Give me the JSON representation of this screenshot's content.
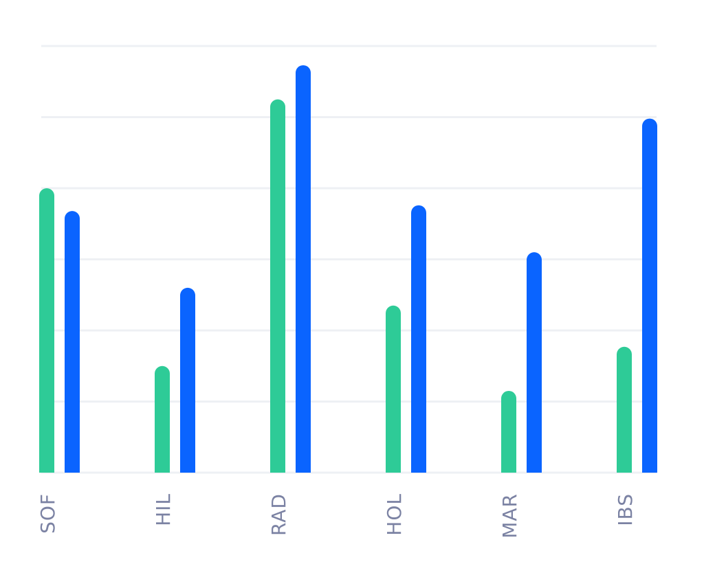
{
  "chart_data": {
    "type": "bar",
    "categories": [
      "SOF",
      "HIL",
      "RAD",
      "HOL",
      "MAR",
      "IBS"
    ],
    "series": [
      {
        "color": "#2ecb97",
        "values": [
          40,
          15,
          52.5,
          23.5,
          11.5,
          17.7
        ]
      },
      {
        "color": "#0a64ff",
        "values": [
          36.8,
          26,
          57.3,
          37.6,
          31,
          49.8
        ]
      }
    ],
    "ylim": [
      0,
      60
    ],
    "grid": true,
    "gridline_count": 6,
    "xlabel": "",
    "ylabel": "",
    "title": ""
  }
}
